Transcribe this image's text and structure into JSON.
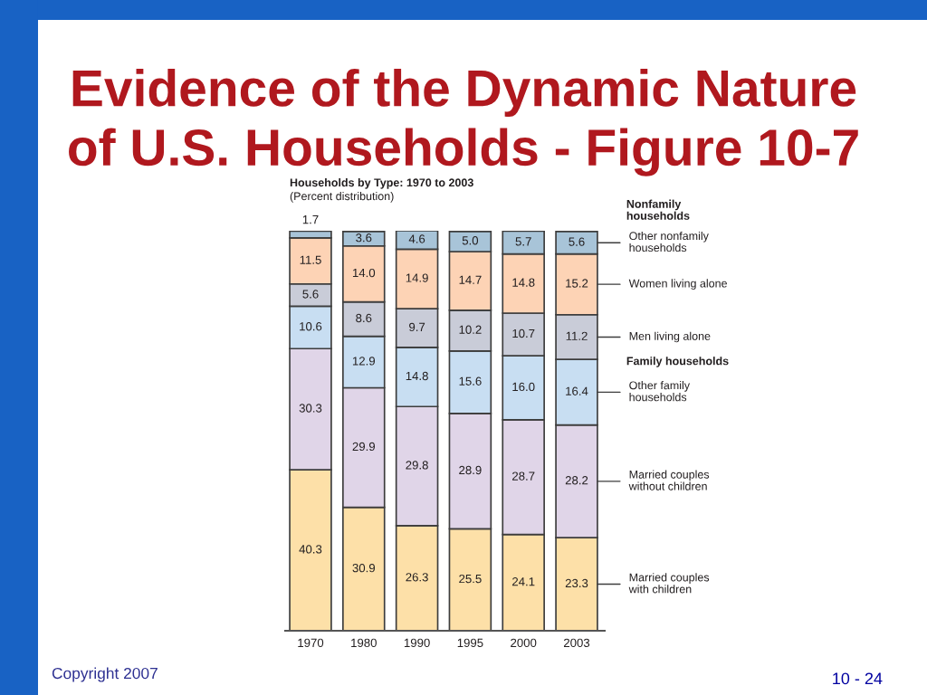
{
  "chart_data": {
    "type": "bar",
    "title": "Evidence of the Dynamic Nature\nof U.S. Households - Figure 10-7",
    "subtitle": "Households by Type: 1970 to 2003",
    "categories": [
      "1970",
      "1980",
      "1990",
      "1995",
      "2000",
      "2003"
    ],
    "stacked": true,
    "tick_labels": "x",
    "legend": "right",
    "series": [
      {
        "name": "Married couples\nwith children",
        "color": "#fde0a8",
        "values": [
          40.3,
          30.9,
          26.3,
          25.5,
          24.1,
          23.3
        ],
        "value_labels": [
          "40.3",
          "30.9",
          "26.3",
          "25.5",
          "24.1",
          "23.3"
        ]
      },
      {
        "name": "Married couples\nwithout children",
        "color": "#e0d5e8",
        "values": [
          30.3,
          29.9,
          29.8,
          28.9,
          28.7,
          28.2
        ],
        "value_labels": [
          "30.3",
          "29.9",
          "29.8",
          "28.9",
          "28.7",
          "28.2"
        ]
      },
      {
        "name": "Other family\nhouseholds",
        "color": "#c8def2",
        "values": [
          10.6,
          12.9,
          14.8,
          15.6,
          16.0,
          16.4
        ],
        "value_labels": [
          "10.6",
          "12.9",
          "14.8",
          "15.6",
          "16.0",
          "16.4"
        ]
      },
      {
        "name": "Men living alone",
        "color": "#c9ccd8",
        "values": [
          5.6,
          8.6,
          9.7,
          10.2,
          10.7,
          11.2
        ],
        "value_labels": [
          "5.6",
          "8.6",
          "9.7",
          "10.2",
          "10.7",
          "11.2"
        ]
      },
      {
        "name": "Women living alone",
        "color": "#fdd3b5",
        "values": [
          11.5,
          14.0,
          14.9,
          14.7,
          14.8,
          15.2
        ],
        "value_labels": [
          "11.5",
          "14.0",
          "14.9",
          "14.7",
          "14.8",
          "15.2"
        ]
      },
      {
        "name": "Other nonfamily\nhouseholds",
        "color": "#a8c4d8",
        "values": [
          1.7,
          3.6,
          4.6,
          5.0,
          5.7,
          5.6
        ],
        "value_labels": [
          "1.7",
          "3.6",
          "4.6",
          "5.0",
          "5.7",
          "5.6"
        ]
      }
    ],
    "annotations": [
      "(Percent distribution)",
      "Nonfamily\nhouseholds",
      "Family households",
      "Copyright 2007",
      "10 - 24"
    ]
  }
}
